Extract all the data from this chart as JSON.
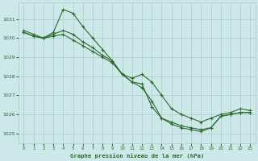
{
  "title": "Graphe pression niveau de la mer (hPa)",
  "bg_color": "#cce8e8",
  "grid_color": "#aacccc",
  "line_color": "#2d6b2d",
  "xlim": [
    -0.5,
    23.5
  ],
  "ylim": [
    1024.5,
    1031.85
  ],
  "yticks": [
    1025,
    1026,
    1027,
    1028,
    1029,
    1030,
    1031
  ],
  "xticks": [
    0,
    1,
    2,
    3,
    4,
    5,
    6,
    7,
    8,
    9,
    10,
    11,
    12,
    13,
    14,
    15,
    16,
    17,
    18,
    19,
    20,
    21,
    22,
    23
  ],
  "series1": [
    1030.3,
    1030.1,
    1030.0,
    1030.3,
    1031.5,
    1031.3,
    1030.6,
    1030.0,
    1029.4,
    1028.8,
    1028.1,
    1027.9,
    1028.1,
    1027.7,
    1027.0,
    1026.3,
    1026.0,
    1025.8,
    1025.6,
    1025.8,
    1026.0,
    1026.1,
    1026.3,
    1026.2
  ],
  "series2": [
    1030.3,
    1030.1,
    1030.0,
    1030.2,
    1030.4,
    1030.2,
    1029.8,
    1029.5,
    1029.1,
    1028.8,
    1028.1,
    1027.7,
    1027.6,
    1026.4,
    1025.8,
    1025.5,
    1025.3,
    1025.2,
    1025.1,
    1025.3,
    1025.9,
    1026.0,
    1026.1,
    1026.1
  ],
  "series3": [
    1030.4,
    1030.2,
    1030.0,
    1030.1,
    1030.2,
    1029.9,
    1029.6,
    1029.3,
    1029.0,
    1028.7,
    1028.1,
    1027.7,
    1027.4,
    1026.7,
    1025.8,
    1025.6,
    1025.4,
    1025.3,
    1025.2,
    1025.3,
    1025.9,
    1026.0,
    1026.1,
    1026.1
  ]
}
